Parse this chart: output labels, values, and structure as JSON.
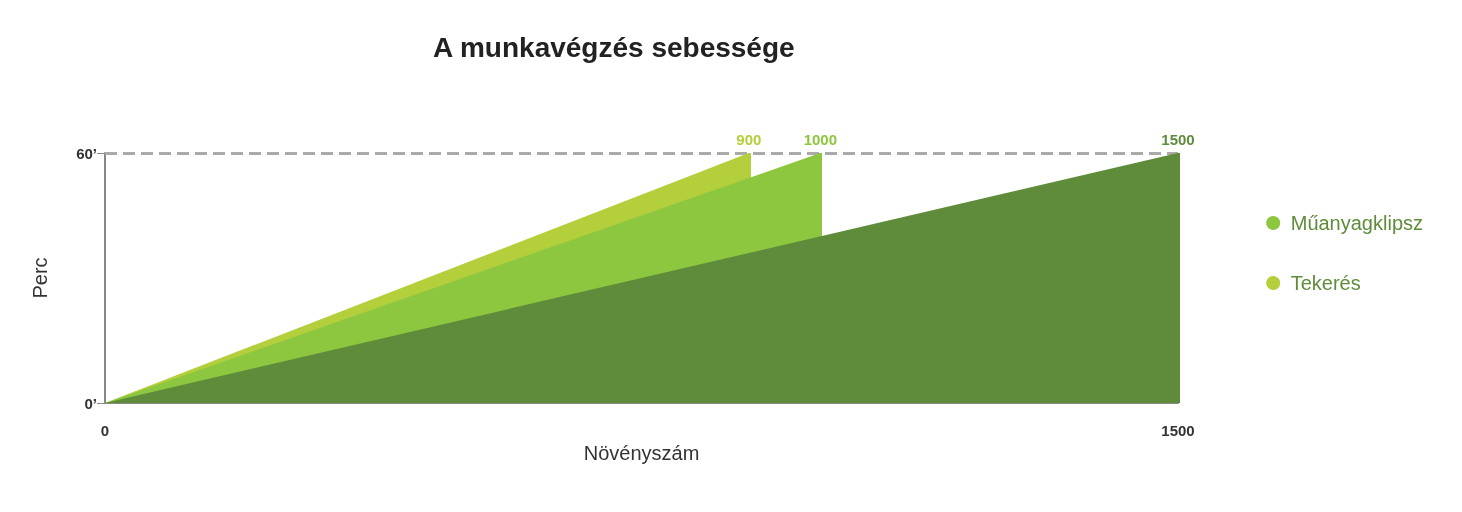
{
  "chart_data": {
    "type": "area",
    "title": "A munkavégzés sebessége",
    "xlabel": "Növényszám",
    "ylabel": "Perc",
    "xlim": [
      0,
      1500
    ],
    "xticks": [
      0,
      1500
    ],
    "ylim": [
      0,
      60
    ],
    "yticks": [
      {
        "value": 0,
        "label": "0’"
      },
      {
        "value": 60,
        "label": "60’"
      }
    ],
    "grid": false,
    "legend": "right",
    "marker": "none",
    "series": [
      {
        "color": "#5e8c3a",
        "x": [
          0,
          1500,
          1500
        ],
        "values": [
          0,
          60,
          0
        ]
      },
      {
        "name": "Műanyagklipsz",
        "color": "#8dc63f",
        "x": [
          0,
          1000,
          1000
        ],
        "values": [
          0,
          60,
          0
        ]
      },
      {
        "name": "Tekerés",
        "color": "#b3cf3b",
        "x": [
          0,
          900,
          900
        ],
        "values": [
          0,
          60,
          0
        ]
      }
    ],
    "ref_lines": [
      {
        "axis": "y",
        "value": 60,
        "label": null,
        "color": "#aaaaaa",
        "line_style": "dashed"
      },
      {
        "axis": "x",
        "value": 900,
        "label": "900",
        "color": "#b3cf3b"
      },
      {
        "axis": "x",
        "value": 1000,
        "label": "1000",
        "color": "#8dc63f"
      },
      {
        "axis": "x",
        "value": 1500,
        "label": "1500",
        "color": "#5e8c3a"
      }
    ]
  }
}
